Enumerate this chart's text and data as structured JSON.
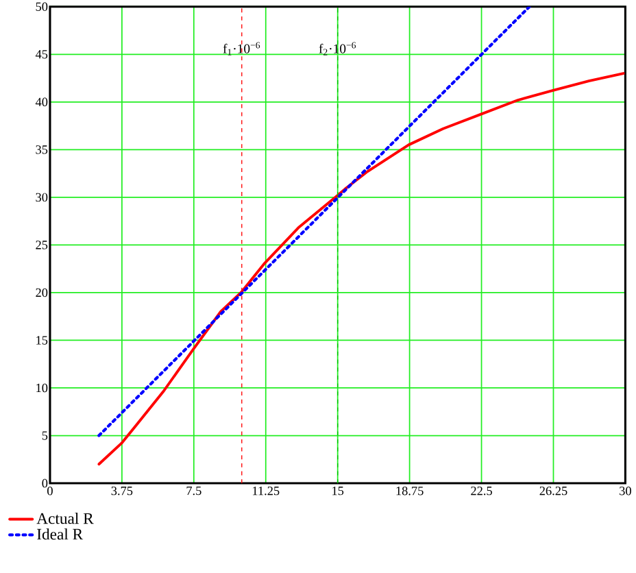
{
  "chart_data": {
    "type": "line",
    "xlim": [
      0,
      30
    ],
    "ylim": [
      0,
      50
    ],
    "xticks": [
      0,
      3.75,
      7.5,
      11.25,
      15,
      18.75,
      22.5,
      26.25,
      30
    ],
    "yticks": [
      0,
      5,
      10,
      15,
      20,
      25,
      30,
      35,
      40,
      45,
      50
    ],
    "grid": true,
    "legend": "bottom",
    "marker": "none",
    "series": [
      {
        "name": "Actual R",
        "color": "#ff0000",
        "line_style": "solid",
        "x": [
          2.55,
          3.73,
          4.5,
          5.9,
          7.45,
          8.9,
          10,
          11.2,
          12.95,
          15,
          15.4,
          16.55,
          18.7,
          20.5,
          22.45,
          24.4,
          26.2,
          28.1,
          29.9
        ],
        "values": [
          2.0,
          4.2,
          6.1,
          9.6,
          14.0,
          18.0,
          20.1,
          23.1,
          26.8,
          30.2,
          30.9,
          32.7,
          35.5,
          37.2,
          38.7,
          40.2,
          41.2,
          42.2,
          43.0
        ]
      },
      {
        "name": "Ideal R",
        "color": "#0000ff",
        "line_style": "dotted",
        "x": [
          2.55,
          25
        ],
        "values": [
          5.0,
          50
        ]
      }
    ],
    "ref_lines": [
      {
        "axis": "x",
        "value": 10,
        "label": "f$_{1}$·10$^{−6}$",
        "color": "#ff0000",
        "line_style": "dashed"
      },
      {
        "axis": "x",
        "value": 15,
        "label": "f$_{2}$·10$^{−6}$",
        "color": "#00c000",
        "line_style": "dashed"
      }
    ]
  }
}
